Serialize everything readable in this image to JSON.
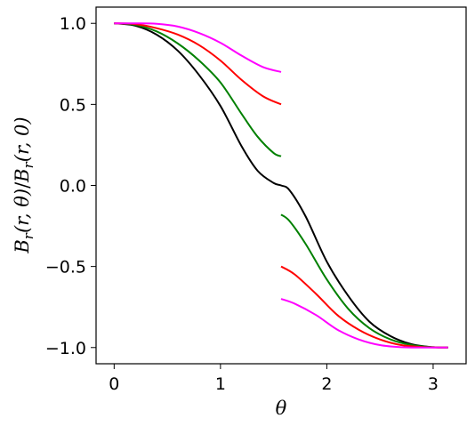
{
  "chart_data": {
    "type": "line",
    "title": "",
    "xlabel": "θ",
    "ylabel": "B_r(r, θ)/B_r(r, 0)",
    "xlim": [
      -0.17,
      3.31
    ],
    "ylim": [
      -1.1,
      1.1
    ],
    "grid": false,
    "legend": "none",
    "xticks": [
      0,
      1,
      2,
      3
    ],
    "xtick_labels": [
      "0",
      "1",
      "2",
      "3"
    ],
    "yticks": [
      1.0,
      0.5,
      0.0,
      -0.5,
      -1.0
    ],
    "ytick_labels": [
      "1.0",
      "0.5",
      "0.0",
      "−0.5",
      "−1.0"
    ],
    "series": [
      {
        "color": "#000000",
        "segments": [
          {
            "x": [
              0,
              0.2,
              0.4,
              0.6,
              0.8,
              1.0,
              1.2,
              1.35,
              1.5,
              1.57,
              1.65,
              1.8,
              2.0,
              2.2,
              2.4,
              2.6,
              2.8,
              3.0,
              3.14
            ],
            "y": [
              1.0,
              0.985,
              0.93,
              0.83,
              0.68,
              0.49,
              0.24,
              0.09,
              0.015,
              0.0,
              -0.03,
              -0.19,
              -0.47,
              -0.68,
              -0.84,
              -0.93,
              -0.98,
              -0.998,
              -1.0
            ]
          }
        ]
      },
      {
        "color": "#008000",
        "segments": [
          {
            "x": [
              0,
              0.2,
              0.4,
              0.6,
              0.8,
              1.0,
              1.2,
              1.35,
              1.5,
              1.57
            ],
            "y": [
              1.0,
              0.99,
              0.95,
              0.875,
              0.77,
              0.635,
              0.44,
              0.3,
              0.2,
              0.18
            ]
          },
          {
            "x": [
              1.57,
              1.65,
              1.8,
              2.0,
              2.2,
              2.4,
              2.6,
              2.8,
              3.0,
              3.14
            ],
            "y": [
              -0.18,
              -0.22,
              -0.36,
              -0.58,
              -0.76,
              -0.88,
              -0.95,
              -0.985,
              -0.998,
              -1.0
            ]
          }
        ]
      },
      {
        "color": "#ff0000",
        "segments": [
          {
            "x": [
              0,
              0.2,
              0.4,
              0.6,
              0.8,
              1.0,
              1.2,
              1.4,
              1.57
            ],
            "y": [
              1.0,
              0.995,
              0.97,
              0.93,
              0.865,
              0.77,
              0.65,
              0.55,
              0.5
            ]
          },
          {
            "x": [
              1.57,
              1.7,
              1.9,
              2.1,
              2.3,
              2.5,
              2.7,
              2.9,
              3.14
            ],
            "y": [
              -0.5,
              -0.55,
              -0.67,
              -0.8,
              -0.89,
              -0.95,
              -0.985,
              -0.997,
              -1.0
            ]
          }
        ]
      },
      {
        "color": "#ff00ff",
        "segments": [
          {
            "x": [
              0,
              0.2,
              0.4,
              0.6,
              0.8,
              1.0,
              1.2,
              1.4,
              1.57
            ],
            "y": [
              1.0,
              1.0,
              0.997,
              0.98,
              0.94,
              0.88,
              0.8,
              0.73,
              0.7
            ]
          },
          {
            "x": [
              1.57,
              1.7,
              1.9,
              2.1,
              2.3,
              2.5,
              2.7,
              2.9,
              3.14
            ],
            "y": [
              -0.7,
              -0.73,
              -0.8,
              -0.89,
              -0.95,
              -0.985,
              -0.998,
              -1.0,
              -1.0
            ]
          }
        ]
      }
    ]
  }
}
